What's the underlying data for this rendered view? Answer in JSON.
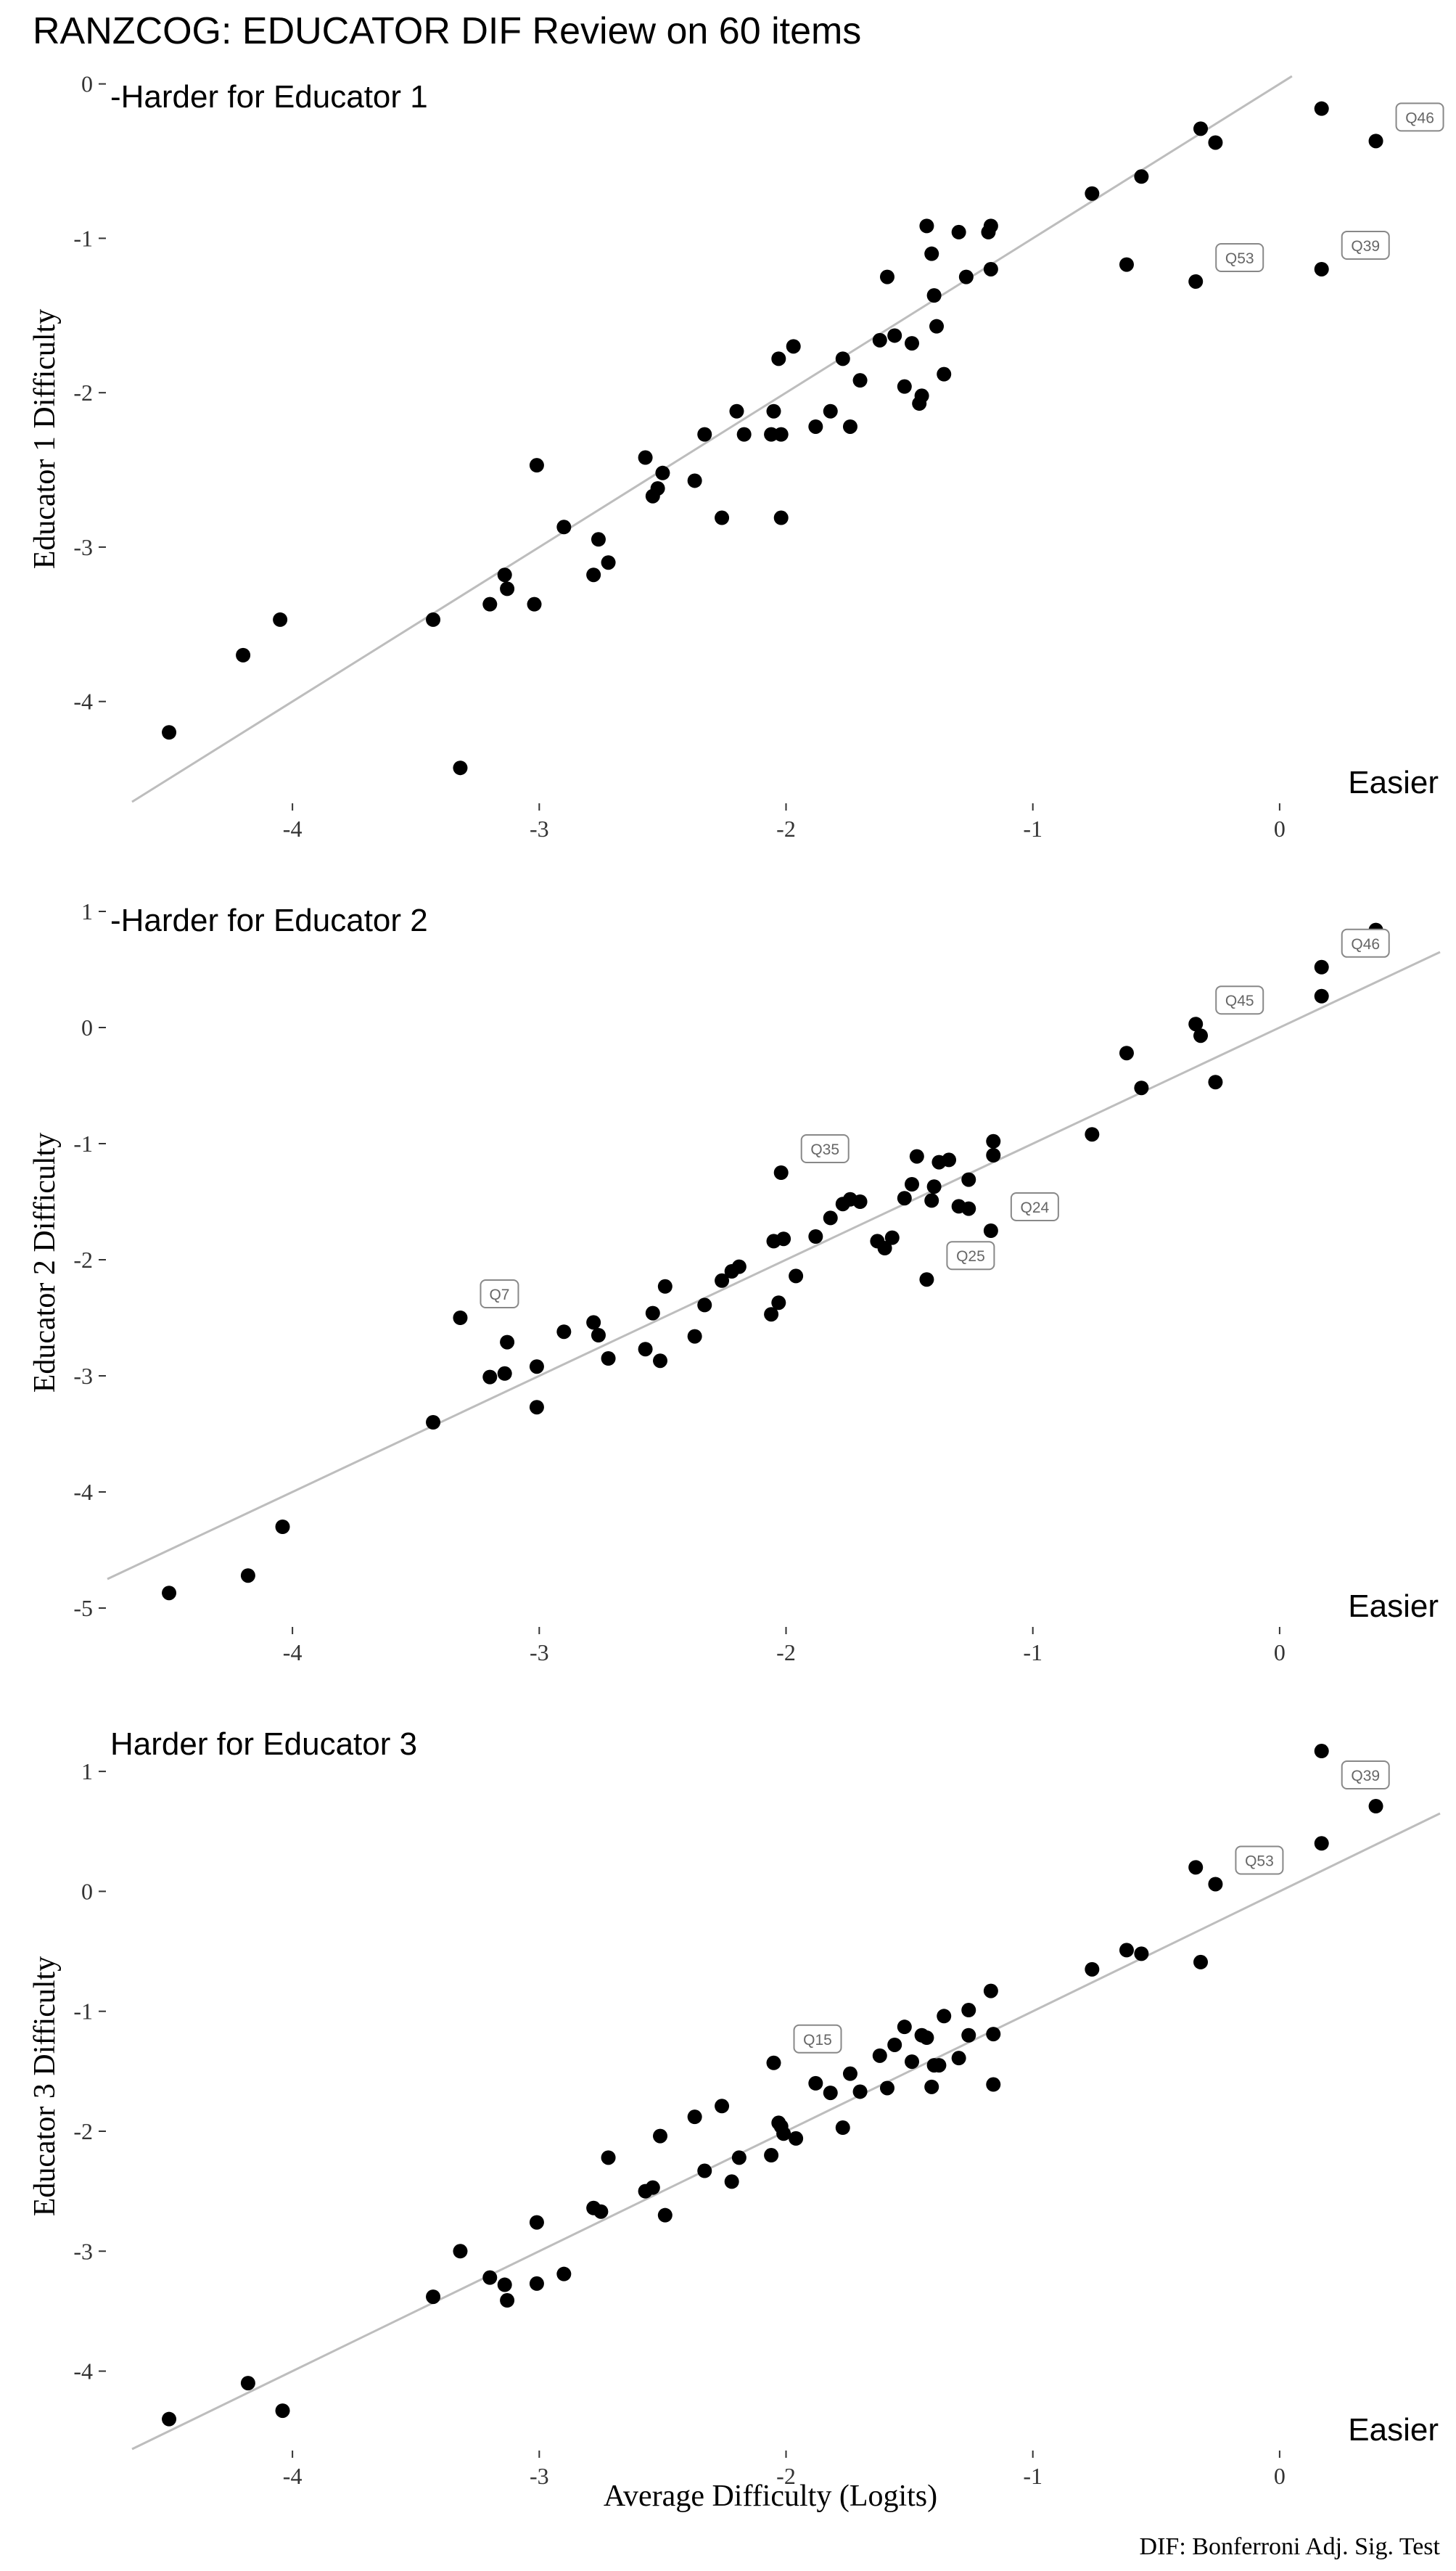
{
  "title": "RANZCOG: EDUCATOR DIF Review on 60 items",
  "caption": "DIF: Bonferroni Adj. Sig. Test",
  "chart_data": [
    {
      "type": "scatter",
      "xlabel": "",
      "ylabel": "Educator 1 Difficulty",
      "harder_label": "-Harder for Educator 1",
      "easier_label": "Easier",
      "xlim": [
        -4.75,
        0.65
      ],
      "ylim": [
        -4.65,
        0.05
      ],
      "xticks": [
        -4,
        -3,
        -2,
        -1,
        0
      ],
      "xtick_labels": [
        "-4",
        "-3",
        "-2",
        "-1",
        "0"
      ],
      "yticks": [
        -4,
        -3,
        -2,
        -1,
        0
      ],
      "ytick_labels": [
        "-4",
        "-3",
        "-2",
        "-1",
        "0"
      ],
      "identity_line": true,
      "points": [
        [
          -4.5,
          -4.2
        ],
        [
          -4.2,
          -3.7
        ],
        [
          -4.05,
          -3.47
        ],
        [
          -3.43,
          -3.47
        ],
        [
          -3.32,
          -4.43
        ],
        [
          -3.2,
          -3.37
        ],
        [
          -3.14,
          -3.18
        ],
        [
          -3.13,
          -3.27
        ],
        [
          -3.02,
          -3.37
        ],
        [
          -3.01,
          -2.47
        ],
        [
          -2.9,
          -2.87
        ],
        [
          -2.78,
          -3.18
        ],
        [
          -2.76,
          -2.95
        ],
        [
          -2.72,
          -3.1
        ],
        [
          -2.57,
          -2.42
        ],
        [
          -2.54,
          -2.67
        ],
        [
          -2.52,
          -2.62
        ],
        [
          -2.5,
          -2.52
        ],
        [
          -2.37,
          -2.57
        ],
        [
          -2.33,
          -2.27
        ],
        [
          -2.26,
          -2.81
        ],
        [
          -2.2,
          -2.12
        ],
        [
          -2.17,
          -2.27
        ],
        [
          -2.06,
          -2.27
        ],
        [
          -2.05,
          -2.12
        ],
        [
          -2.03,
          -1.78
        ],
        [
          -2.02,
          -2.81
        ],
        [
          -2.02,
          -2.27
        ],
        [
          -1.97,
          -1.7
        ],
        [
          -1.88,
          -2.22
        ],
        [
          -1.82,
          -2.12
        ],
        [
          -1.77,
          -1.78
        ],
        [
          -1.74,
          -2.22
        ],
        [
          -1.7,
          -1.92
        ],
        [
          -1.62,
          -1.66
        ],
        [
          -1.59,
          -1.25
        ],
        [
          -1.56,
          -1.63
        ],
        [
          -1.52,
          -1.96
        ],
        [
          -1.49,
          -1.68
        ],
        [
          -1.46,
          -2.07
        ],
        [
          -1.43,
          -0.92
        ],
        [
          -1.41,
          -1.1
        ],
        [
          -1.4,
          -1.37
        ],
        [
          -1.39,
          -1.57
        ],
        [
          -1.36,
          -1.88
        ],
        [
          -1.3,
          -0.96
        ],
        [
          -1.27,
          -1.25
        ],
        [
          -1.18,
          -0.96
        ],
        [
          -1.17,
          -0.92
        ],
        [
          -1.17,
          -1.2
        ],
        [
          -0.76,
          -0.71
        ],
        [
          -0.62,
          -1.17
        ],
        [
          -0.56,
          -0.6
        ],
        [
          -0.34,
          -1.28
        ],
        [
          -0.32,
          -0.29
        ],
        [
          -0.26,
          -0.38
        ],
        [
          0.17,
          -0.16
        ],
        [
          0.17,
          -1.2
        ],
        [
          0.39,
          -0.37
        ],
        [
          -1.45,
          -2.02
        ]
      ],
      "labels": [
        {
          "text": "Q46",
          "x": 0.39,
          "y": -0.37
        },
        {
          "text": "Q53",
          "x": -0.34,
          "y": -1.28
        },
        {
          "text": "Q39",
          "x": 0.17,
          "y": -1.2
        }
      ]
    },
    {
      "type": "scatter",
      "xlabel": "",
      "ylabel": "Educator 2 Difficulty",
      "harder_label": "-Harder for Educator 2",
      "easier_label": "Easier",
      "xlim": [
        -4.75,
        0.65
      ],
      "ylim": [
        -5.15,
        1.1
      ],
      "xticks": [
        -4,
        -3,
        -2,
        -1,
        0
      ],
      "xtick_labels": [
        "-4",
        "-3",
        "-2",
        "-1",
        "0"
      ],
      "yticks": [
        -5,
        -4,
        -3,
        -2,
        -1,
        0,
        1
      ],
      "ytick_labels": [
        "-5",
        "-4",
        "-3",
        "-2",
        "-1",
        "0",
        "1"
      ],
      "identity_line": true,
      "points": [
        [
          -4.5,
          -4.87
        ],
        [
          -4.18,
          -4.72
        ],
        [
          -4.04,
          -4.3
        ],
        [
          -3.43,
          -3.4
        ],
        [
          -3.32,
          -2.5
        ],
        [
          -3.2,
          -3.01
        ],
        [
          -3.14,
          -2.98
        ],
        [
          -3.13,
          -2.71
        ],
        [
          -3.01,
          -2.92
        ],
        [
          -3.01,
          -3.27
        ],
        [
          -2.9,
          -2.62
        ],
        [
          -2.78,
          -2.54
        ],
        [
          -2.76,
          -2.65
        ],
        [
          -2.72,
          -2.85
        ],
        [
          -2.57,
          -2.77
        ],
        [
          -2.54,
          -2.46
        ],
        [
          -2.51,
          -2.87
        ],
        [
          -2.49,
          -2.23
        ],
        [
          -2.37,
          -2.66
        ],
        [
          -2.33,
          -2.39
        ],
        [
          -2.26,
          -2.18
        ],
        [
          -2.22,
          -2.1
        ],
        [
          -2.19,
          -2.06
        ],
        [
          -2.06,
          -2.47
        ],
        [
          -2.05,
          -1.84
        ],
        [
          -2.03,
          -2.37
        ],
        [
          -2.02,
          -1.25
        ],
        [
          -2.01,
          -1.82
        ],
        [
          -1.96,
          -2.14
        ],
        [
          -1.88,
          -1.8
        ],
        [
          -1.82,
          -1.64
        ],
        [
          -1.77,
          -1.52
        ],
        [
          -1.74,
          -1.48
        ],
        [
          -1.7,
          -1.5
        ],
        [
          -1.63,
          -1.84
        ],
        [
          -1.6,
          -1.9
        ],
        [
          -1.57,
          -1.81
        ],
        [
          -1.52,
          -1.47
        ],
        [
          -1.49,
          -1.35
        ],
        [
          -1.47,
          -1.11
        ],
        [
          -1.43,
          -2.17
        ],
        [
          -1.41,
          -1.49
        ],
        [
          -1.4,
          -1.37
        ],
        [
          -1.38,
          -1.16
        ],
        [
          -1.34,
          -1.14
        ],
        [
          -1.3,
          -1.54
        ],
        [
          -1.26,
          -1.56
        ],
        [
          -1.26,
          -1.31
        ],
        [
          -1.17,
          -1.75
        ],
        [
          -1.16,
          -0.98
        ],
        [
          -1.16,
          -1.1
        ],
        [
          -0.76,
          -0.92
        ],
        [
          -0.62,
          -0.22
        ],
        [
          -0.56,
          -0.52
        ],
        [
          -0.34,
          0.03
        ],
        [
          -0.32,
          -0.07
        ],
        [
          -0.26,
          -0.47
        ],
        [
          0.17,
          0.52
        ],
        [
          0.17,
          0.27
        ],
        [
          0.39,
          0.84
        ]
      ],
      "labels": [
        {
          "text": "Q46",
          "x": 0.17,
          "y": 0.52
        },
        {
          "text": "Q45",
          "x": -0.34,
          "y": 0.03
        },
        {
          "text": "Q35",
          "x": -2.02,
          "y": -1.25
        },
        {
          "text": "Q24",
          "x": -1.17,
          "y": -1.75
        },
        {
          "text": "Q25",
          "x": -1.43,
          "y": -2.17
        },
        {
          "text": "Q7",
          "x": -3.32,
          "y": -2.5
        }
      ]
    },
    {
      "type": "scatter",
      "xlabel": "Average Difficulty (Logits)",
      "ylabel": "Educator 3 Difficulty",
      "harder_label": "Harder for Educator 3",
      "easier_label": "Easier",
      "xlim": [
        -4.75,
        0.65
      ],
      "ylim": [
        -4.65,
        1.4
      ],
      "xticks": [
        -4,
        -3,
        -2,
        -1,
        0
      ],
      "xtick_labels": [
        "-4",
        "-3",
        "-2",
        "-1",
        "0"
      ],
      "yticks": [
        -4,
        -3,
        -2,
        -1,
        0,
        1
      ],
      "ytick_labels": [
        "-4",
        "-3",
        "-2",
        "-1",
        "0",
        "1"
      ],
      "identity_line": true,
      "points": [
        [
          -4.5,
          -4.4
        ],
        [
          -4.18,
          -4.1
        ],
        [
          -4.04,
          -4.33
        ],
        [
          -3.43,
          -3.38
        ],
        [
          -3.32,
          -3.0
        ],
        [
          -3.2,
          -3.22
        ],
        [
          -3.14,
          -3.28
        ],
        [
          -3.13,
          -3.41
        ],
        [
          -3.01,
          -2.76
        ],
        [
          -3.01,
          -3.27
        ],
        [
          -2.9,
          -3.19
        ],
        [
          -2.78,
          -2.64
        ],
        [
          -2.75,
          -2.67
        ],
        [
          -2.72,
          -2.22
        ],
        [
          -2.57,
          -2.5
        ],
        [
          -2.54,
          -2.47
        ],
        [
          -2.51,
          -2.04
        ],
        [
          -2.49,
          -2.7
        ],
        [
          -2.37,
          -1.88
        ],
        [
          -2.33,
          -2.33
        ],
        [
          -2.26,
          -1.79
        ],
        [
          -2.22,
          -2.42
        ],
        [
          -2.19,
          -2.22
        ],
        [
          -2.06,
          -2.2
        ],
        [
          -2.05,
          -1.43
        ],
        [
          -2.03,
          -1.93
        ],
        [
          -2.02,
          -1.96
        ],
        [
          -2.01,
          -2.02
        ],
        [
          -1.96,
          -2.06
        ],
        [
          -1.88,
          -1.6
        ],
        [
          -1.82,
          -1.68
        ],
        [
          -1.77,
          -1.97
        ],
        [
          -1.74,
          -1.52
        ],
        [
          -1.7,
          -1.67
        ],
        [
          -1.62,
          -1.37
        ],
        [
          -1.59,
          -1.64
        ],
        [
          -1.56,
          -1.28
        ],
        [
          -1.52,
          -1.13
        ],
        [
          -1.49,
          -1.42
        ],
        [
          -1.45,
          -1.2
        ],
        [
          -1.43,
          -1.22
        ],
        [
          -1.41,
          -1.63
        ],
        [
          -1.4,
          -1.45
        ],
        [
          -1.38,
          -1.45
        ],
        [
          -1.36,
          -1.04
        ],
        [
          -1.3,
          -1.39
        ],
        [
          -1.26,
          -0.99
        ],
        [
          -1.26,
          -1.2
        ],
        [
          -1.17,
          -0.83
        ],
        [
          -1.16,
          -1.19
        ],
        [
          -1.16,
          -1.61
        ],
        [
          -0.76,
          -0.65
        ],
        [
          -0.62,
          -0.49
        ],
        [
          -0.56,
          -0.52
        ],
        [
          -0.34,
          0.2
        ],
        [
          -0.32,
          -0.59
        ],
        [
          -0.26,
          0.06
        ],
        [
          0.17,
          1.17
        ],
        [
          0.17,
          0.4
        ],
        [
          0.39,
          0.71
        ]
      ],
      "labels": [
        {
          "text": "Q39",
          "x": 0.17,
          "y": 1.17
        },
        {
          "text": "Q53",
          "x": -0.26,
          "y": 0.06
        },
        {
          "text": "Q15",
          "x": -2.05,
          "y": -1.43
        }
      ]
    }
  ]
}
